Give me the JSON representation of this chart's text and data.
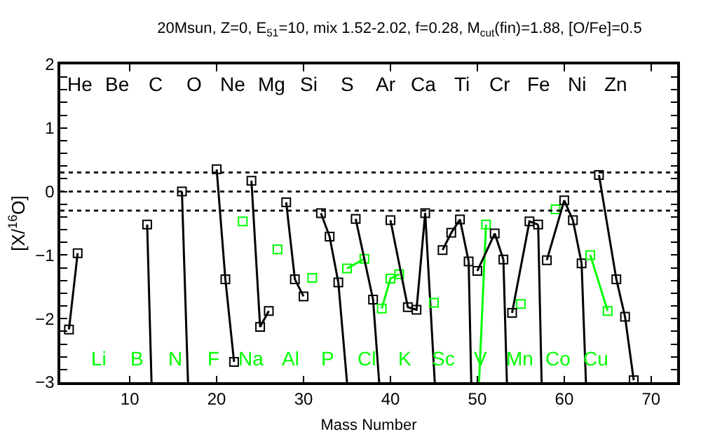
{
  "chart_data": {
    "type": "line",
    "title": "20Msun, Z=0, E$_{51}$=10, mix 1.52-2.02, f=0.28, M$_{cut}$(fin)=1.88, [O/Fe]=0.5",
    "xlabel": "Mass Number",
    "ylabel": "[X/$^{16}$O]",
    "marker": "square",
    "xlim": [
      2,
      73
    ],
    "ylim": [
      -3,
      2
    ],
    "xticks": [
      10,
      20,
      30,
      40,
      50,
      60,
      70
    ],
    "yticks": [
      -3,
      {
        "value": -2.8,
        "label": null
      },
      {
        "value": -2.6,
        "label": null
      },
      {
        "value": -2.4,
        "label": null
      },
      {
        "value": -2.2,
        "label": null
      },
      -2,
      {
        "value": -1.8,
        "label": null
      },
      {
        "value": -1.6,
        "label": null
      },
      {
        "value": -1.4,
        "label": null
      },
      {
        "value": -1.2,
        "label": null
      },
      -1,
      {
        "value": -0.8,
        "label": null
      },
      {
        "value": -0.6,
        "label": null
      },
      {
        "value": -0.4,
        "label": null
      },
      {
        "value": -0.2,
        "label": null
      },
      0,
      {
        "value": 0.2,
        "label": null
      },
      {
        "value": 0.4,
        "label": null
      },
      {
        "value": 0.6,
        "label": null
      },
      {
        "value": 0.8,
        "label": null
      },
      1,
      {
        "value": 1.2,
        "label": null
      },
      {
        "value": 1.4,
        "label": null
      },
      {
        "value": 1.6,
        "label": null
      },
      {
        "value": 1.8,
        "label": null
      },
      2
    ],
    "ref_lines": [
      {
        "axis": "y",
        "value": 0.3,
        "line_style": "dotted",
        "color": "#000000"
      },
      {
        "axis": "y",
        "value": 0,
        "line_style": "dotted",
        "color": "#000000"
      },
      {
        "axis": "y",
        "value": -0.3,
        "line_style": "dotted",
        "color": "#000000"
      }
    ],
    "series": [
      {
        "color": "#000000",
        "x": [
          3,
          4
        ],
        "values": [
          -2.17,
          -0.97
        ]
      },
      {
        "color": "#000000",
        "x": [
          12
        ],
        "values": [
          -0.52
        ]
      },
      {
        "color": "#000000",
        "x": [
          12,
          12.5
        ],
        "values": [
          -0.52,
          -3
        ],
        "marker": "none"
      },
      {
        "color": "#000000",
        "x": [
          16
        ],
        "values": [
          0.0
        ]
      },
      {
        "color": "#000000",
        "x": [
          16,
          16.7
        ],
        "values": [
          0.0,
          -3
        ],
        "marker": "none"
      },
      {
        "color": "#000000",
        "x": [
          20,
          21,
          22
        ],
        "values": [
          0.35,
          -1.38,
          -2.68
        ]
      },
      {
        "color": "#00ff00",
        "x": [
          23
        ],
        "values": [
          -0.47
        ]
      },
      {
        "color": "#000000",
        "x": [
          24,
          25,
          26
        ],
        "values": [
          0.17,
          -2.13,
          -1.88
        ]
      },
      {
        "color": "#00ff00",
        "x": [
          27
        ],
        "values": [
          -0.91
        ]
      },
      {
        "color": "#000000",
        "x": [
          28,
          29,
          30
        ],
        "values": [
          -0.17,
          -1.38,
          -1.65
        ]
      },
      {
        "color": "#00ff00",
        "x": [
          31
        ],
        "values": [
          -1.36
        ]
      },
      {
        "color": "#000000",
        "x": [
          32,
          33,
          34
        ],
        "values": [
          -0.34,
          -0.71,
          -1.43
        ]
      },
      {
        "color": "#000000",
        "x": [
          34,
          35
        ],
        "values": [
          -1.43,
          -3
        ],
        "marker": "none"
      },
      {
        "color": "#00ff00",
        "x": [
          35,
          37
        ],
        "values": [
          -1.21,
          -1.06
        ]
      },
      {
        "color": "#000000",
        "x": [
          36,
          38
        ],
        "values": [
          -0.43,
          -1.7
        ]
      },
      {
        "color": "#000000",
        "x": [
          38,
          38.7
        ],
        "values": [
          -1.7,
          -3
        ],
        "marker": "none"
      },
      {
        "color": "#00ff00",
        "x": [
          39,
          40,
          41
        ],
        "values": [
          -1.84,
          -1.37,
          -1.3
        ]
      },
      {
        "color": "#000000",
        "x": [
          40,
          42,
          43,
          44
        ],
        "values": [
          -0.45,
          -1.82,
          -1.86,
          -0.34
        ]
      },
      {
        "color": "#000000",
        "x": [
          44,
          45.1
        ],
        "values": [
          -0.34,
          -3
        ],
        "marker": "none"
      },
      {
        "color": "#00ff00",
        "x": [
          45
        ],
        "values": [
          -1.75
        ]
      },
      {
        "color": "#000000",
        "x": [
          46,
          47,
          48,
          49
        ],
        "values": [
          -0.92,
          -0.65,
          -0.44,
          -1.1
        ]
      },
      {
        "color": "#000000",
        "x": [
          49,
          49.3
        ],
        "values": [
          -1.1,
          -3
        ],
        "marker": "none"
      },
      {
        "color": "#00ff00",
        "x": [
          51
        ],
        "values": [
          -0.52
        ]
      },
      {
        "color": "#00ff00",
        "x": [
          50.2,
          51
        ],
        "values": [
          -3,
          -0.52
        ],
        "marker": "none"
      },
      {
        "color": "#000000",
        "x": [
          50,
          52,
          53
        ],
        "values": [
          -1.25,
          -0.66,
          -1.07
        ]
      },
      {
        "color": "#000000",
        "x": [
          53,
          53.4
        ],
        "values": [
          -1.07,
          -3
        ],
        "marker": "none"
      },
      {
        "color": "#00ff00",
        "x": [
          55
        ],
        "values": [
          -1.77
        ]
      },
      {
        "color": "#000000",
        "x": [
          54,
          56,
          57
        ],
        "values": [
          -1.91,
          -0.47,
          -0.52
        ]
      },
      {
        "color": "#000000",
        "x": [
          57,
          57.4
        ],
        "values": [
          -0.52,
          -3
        ],
        "marker": "none"
      },
      {
        "color": "#00ff00",
        "x": [
          59
        ],
        "values": [
          -0.28
        ]
      },
      {
        "color": "#000000",
        "x": [
          58,
          60,
          61,
          62
        ],
        "values": [
          -1.08,
          -0.14,
          -0.45,
          -1.13
        ]
      },
      {
        "color": "#000000",
        "x": [
          62,
          62.5
        ],
        "values": [
          -1.13,
          -3
        ],
        "marker": "none"
      },
      {
        "color": "#00ff00",
        "x": [
          63,
          65
        ],
        "values": [
          -1.0,
          -1.88
        ]
      },
      {
        "color": "#000000",
        "x": [
          64,
          66,
          67,
          68
        ],
        "values": [
          0.26,
          -1.38,
          -1.97,
          -2.97
        ]
      }
    ],
    "annotations": [
      "He",
      "Li",
      "Be",
      "B",
      "C",
      "N",
      "O",
      "F",
      "Ne",
      "Na",
      "Mg",
      "Al",
      "Si",
      "P",
      "S",
      "Cl",
      "Ar",
      "K",
      "Ca",
      "Sc",
      "Ti",
      "V",
      "Cr",
      "Mn",
      "Fe",
      "Co",
      "Ni",
      "Cu",
      "Zn"
    ]
  }
}
